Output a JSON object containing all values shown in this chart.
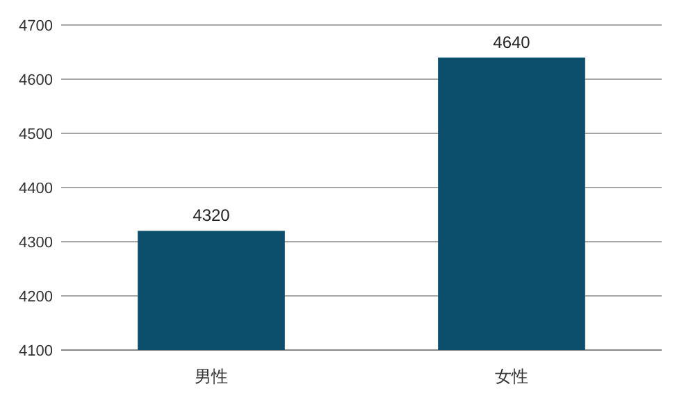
{
  "chart_data": {
    "type": "bar",
    "categories": [
      "男性",
      "女性"
    ],
    "values": [
      4320,
      4640
    ],
    "color": "#0b4f6c",
    "ylim": [
      4100,
      4700
    ],
    "yticks": [
      4100,
      4200,
      4300,
      4400,
      4500,
      4600,
      4700
    ],
    "grid": "y",
    "data_labels": true
  }
}
